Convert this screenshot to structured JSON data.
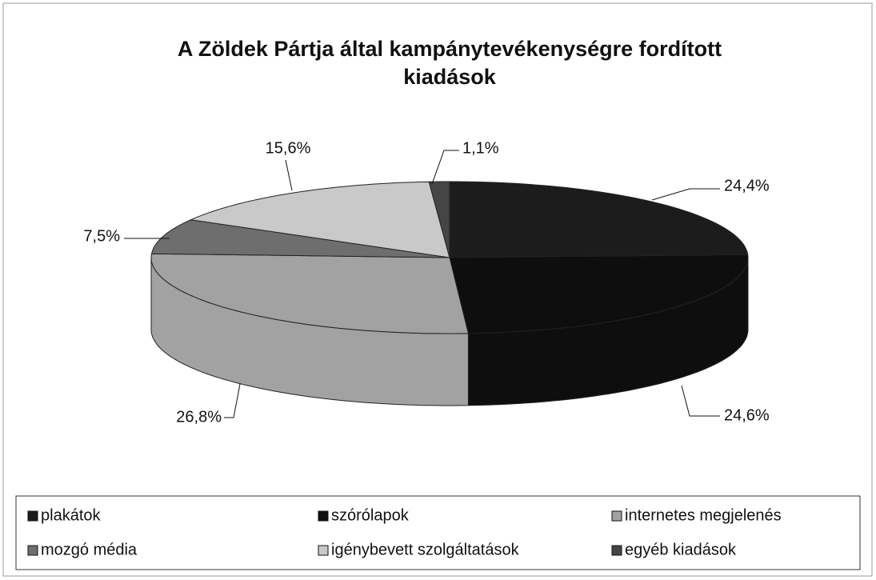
{
  "chart_data": {
    "type": "pie",
    "title": "A Zöldek Pártja által kampánytevékenységre fordított kiadások",
    "categories": [
      "plakátok",
      "szórólapok",
      "internetes megjelenés",
      "mozgó média",
      "igénybevett szolgáltatások",
      "egyéb kiadások"
    ],
    "values": [
      24.4,
      24.6,
      26.8,
      7.5,
      15.6,
      1.1
    ],
    "value_labels": [
      "24,4%",
      "24,6%",
      "26,8%",
      "7,5%",
      "15,6%",
      "1,1%"
    ],
    "colors": [
      "#1c1c1c",
      "#0e0e0e",
      "#a2a2a2",
      "#6e6e6e",
      "#c9c9c9",
      "#454545"
    ],
    "legend": "bottom"
  }
}
